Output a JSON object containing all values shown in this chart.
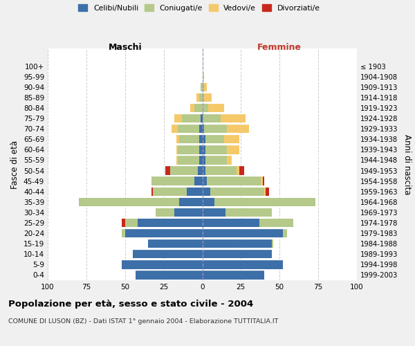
{
  "age_groups": [
    "0-4",
    "5-9",
    "10-14",
    "15-19",
    "20-24",
    "25-29",
    "30-34",
    "35-39",
    "40-44",
    "45-49",
    "50-54",
    "55-59",
    "60-64",
    "65-69",
    "70-74",
    "75-79",
    "80-84",
    "85-89",
    "90-94",
    "95-99",
    "100+"
  ],
  "birth_years": [
    "1999-2003",
    "1994-1998",
    "1989-1993",
    "1984-1988",
    "1979-1983",
    "1974-1978",
    "1969-1973",
    "1964-1968",
    "1959-1963",
    "1954-1958",
    "1949-1953",
    "1944-1948",
    "1939-1943",
    "1934-1938",
    "1929-1933",
    "1924-1928",
    "1919-1923",
    "1914-1918",
    "1909-1913",
    "1904-1908",
    "≤ 1903"
  ],
  "male": {
    "celibi": [
      43,
      52,
      45,
      35,
      50,
      42,
      18,
      15,
      10,
      5,
      3,
      2,
      2,
      2,
      2,
      1,
      0,
      0,
      0,
      0,
      0
    ],
    "coniugati": [
      0,
      0,
      0,
      0,
      2,
      8,
      12,
      65,
      22,
      28,
      18,
      14,
      14,
      13,
      14,
      12,
      5,
      2,
      1,
      0,
      0
    ],
    "vedovi": [
      0,
      0,
      0,
      0,
      0,
      0,
      0,
      0,
      0,
      0,
      0,
      1,
      1,
      2,
      4,
      5,
      3,
      2,
      0,
      0,
      0
    ],
    "divorziati": [
      0,
      0,
      0,
      0,
      0,
      2,
      0,
      0,
      1,
      0,
      3,
      0,
      0,
      0,
      0,
      0,
      0,
      0,
      0,
      0,
      0
    ]
  },
  "female": {
    "nubili": [
      40,
      52,
      45,
      45,
      52,
      37,
      15,
      8,
      5,
      3,
      2,
      2,
      2,
      2,
      1,
      0,
      0,
      0,
      0,
      0,
      0
    ],
    "coniugate": [
      0,
      0,
      0,
      1,
      3,
      22,
      30,
      65,
      35,
      35,
      20,
      14,
      14,
      12,
      15,
      12,
      4,
      1,
      1,
      0,
      0
    ],
    "vedove": [
      0,
      0,
      0,
      0,
      0,
      0,
      0,
      0,
      1,
      1,
      2,
      3,
      8,
      10,
      14,
      16,
      10,
      5,
      2,
      1,
      0
    ],
    "divorziate": [
      0,
      0,
      0,
      0,
      0,
      0,
      0,
      0,
      2,
      1,
      3,
      0,
      0,
      0,
      0,
      0,
      0,
      0,
      0,
      0,
      0
    ]
  },
  "colors": {
    "celibi": "#3d6fa8",
    "coniugati": "#b5c98a",
    "vedovi": "#f5c96a",
    "divorziati": "#c8281a"
  },
  "title": "Popolazione per età, sesso e stato civile - 2004",
  "subtitle": "COMUNE DI LUSON (BZ) - Dati ISTAT 1° gennaio 2004 - Elaborazione TUTTITALIA.IT",
  "ylabel_left": "Fasce di età",
  "ylabel_right": "Anni di nascita",
  "xlabel_left": "Maschi",
  "xlabel_right": "Femmine",
  "xlim": 100,
  "bg_color": "#f0f0f0",
  "plot_bg": "#ffffff"
}
